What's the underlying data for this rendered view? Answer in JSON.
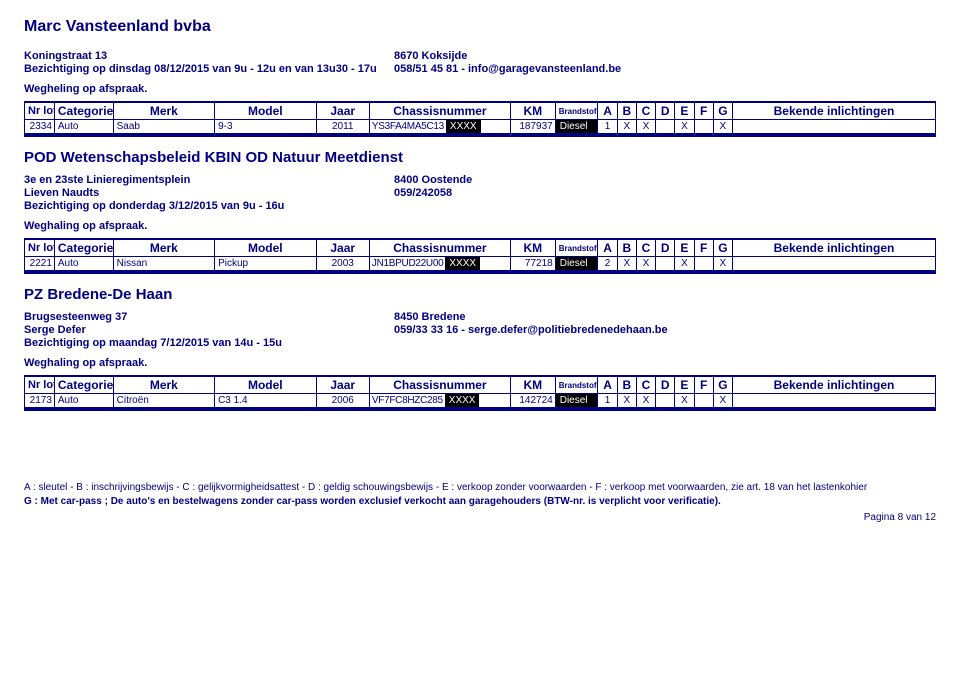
{
  "dealer1": {
    "name": "Marc Vansteenland bvba",
    "addr_left": "Koningstraat 13",
    "visit": "Bezichtiging op dinsdag 08/12/2015 van 9u - 12u en van 13u30 - 17u",
    "addr_right_line1": "8670  Koksijde",
    "addr_right_line2": "058/51 45 81 - info@garagevansteenland.be",
    "note": "Wegheling op afspraak."
  },
  "columns": {
    "nrlot": "Nr lot",
    "categorie": "Categorie",
    "merk": "Merk",
    "model": "Model",
    "jaar": "Jaar",
    "chassis": "Chassisnummer",
    "km": "KM",
    "brandstof": "Brandstof",
    "a": "A",
    "b": "B",
    "c": "C",
    "d": "D",
    "e": "E",
    "f": "F",
    "g": "G",
    "bekende": "Bekende inlichtingen"
  },
  "mask": "XXXX",
  "rows1": [
    {
      "nr": "2334",
      "cat": "Auto",
      "merk": "Saab",
      "model": "9-3",
      "jaar": "2011",
      "chassis": "YS3FA4MA5C13",
      "km": "187937",
      "fuel": "Diesel",
      "a": "1",
      "b": "X",
      "c": "X",
      "d": "",
      "e": "X",
      "f": "",
      "g": "X",
      "bek": ""
    }
  ],
  "section2": {
    "title": "POD Wetenschapsbeleid KBIN OD Natuur Meetdienst",
    "addr_left": "3e en 23ste Linieregimentsplein",
    "contact_left": "Lieven Naudts",
    "visit": "Bezichtiging op donderdag 3/12/2015 van 9u - 16u",
    "addr_right_line1": "8400  Oostende",
    "addr_right_line2": "059/242058",
    "note": "Weghaling op afspraak."
  },
  "rows2": [
    {
      "nr": "2221",
      "cat": "Auto",
      "merk": "Nissan",
      "model": "Pickup",
      "jaar": "2003",
      "chassis": "JN1BPUD22U00",
      "km": "77218",
      "fuel": "Diesel",
      "a": "2",
      "b": "X",
      "c": "X",
      "d": "",
      "e": "X",
      "f": "",
      "g": "X",
      "bek": ""
    }
  ],
  "section3": {
    "title": "PZ Bredene-De Haan",
    "addr_left": "Brugsesteenweg 37",
    "contact_left": "Serge Defer",
    "visit": "Bezichtiging op maandag 7/12/2015 van 14u - 15u",
    "addr_right_line1": "8450  Bredene",
    "addr_right_line2": "059/33 33 16 - serge.defer@politiebredenedehaan.be",
    "note": "Weghaling op afspraak."
  },
  "rows3": [
    {
      "nr": "2173",
      "cat": "Auto",
      "merk": "Citroën",
      "model": "C3 1.4",
      "jaar": "2006",
      "chassis": "VF7FC8HZC285",
      "km": "142724",
      "fuel": "Diesel",
      "a": "1",
      "b": "X",
      "c": "X",
      "d": "",
      "e": "X",
      "f": "",
      "g": "X",
      "bek": ""
    }
  ],
  "legend": {
    "l1": "A : sleutel - B : inschrijvingsbewijs - C : gelijkvormigheidsattest - D : geldig schouwingsbewijs - E : verkoop zonder voorwaarden - F : verkoop met voorwaarden, zie art. 18 van het lastenkohier",
    "l2": "G : Met car-pass ; De auto's en bestelwagens zonder car-pass worden exclusief verkocht aan garagehouders (BTW-nr. is verplicht voor verificatie)."
  },
  "pager": "Pagina 8 van 12",
  "colwidths": {
    "nrlot": 28,
    "categorie": 55,
    "merk": 95,
    "model": 95,
    "jaar": 50,
    "chassis": 132,
    "km": 42,
    "brandstof": 40,
    "letter": 18,
    "bekende": 190
  }
}
